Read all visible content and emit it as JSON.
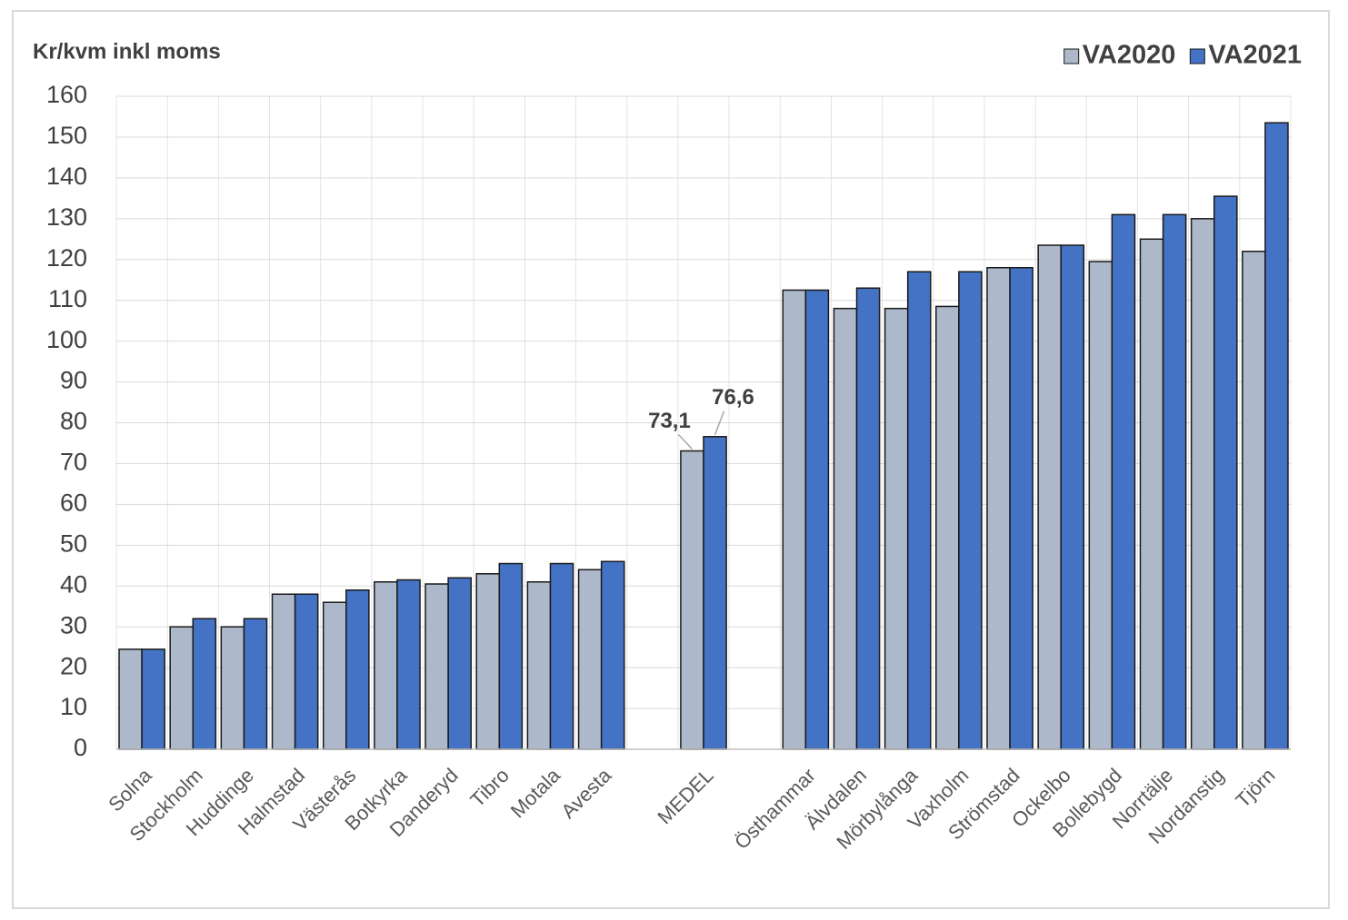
{
  "chart_data": {
    "type": "bar",
    "y_label": "Kr/kvm inkl moms",
    "categories": [
      "Solna",
      "Stockholm",
      "Huddinge",
      "Halmstad",
      "Västerås",
      "Botkyrka",
      "Danderyd",
      "Tibro",
      "Motala",
      "Avesta",
      null,
      "MEDEL",
      null,
      "Östhammar",
      "Älvdalen",
      "Mörbylånga",
      "Vaxholm",
      "Strömstad",
      "Ockelbo",
      "Bollebygd",
      "Norrtälje",
      "Nordanstig",
      "Tjörn"
    ],
    "series": [
      {
        "name": "VA2020",
        "color": "#adb9ca",
        "values": [
          24.5,
          30,
          30,
          38,
          36,
          41,
          40.5,
          43,
          41,
          44,
          null,
          73.1,
          null,
          112.5,
          108,
          108,
          108.5,
          118,
          123.5,
          119.5,
          125,
          130,
          122
        ],
        "value_labels": [
          null,
          null,
          null,
          null,
          null,
          null,
          null,
          null,
          null,
          null,
          null,
          "73,1",
          null,
          null,
          null,
          null,
          null,
          null,
          null,
          null,
          null,
          null,
          null
        ]
      },
      {
        "name": "VA2021",
        "color": "#4472c4",
        "values": [
          24.5,
          32,
          32,
          38,
          39,
          41.5,
          42,
          45.5,
          45.5,
          46,
          null,
          76.6,
          null,
          112.5,
          113,
          117,
          117,
          118,
          123.5,
          131,
          131,
          135.5,
          153.5
        ],
        "value_labels": [
          null,
          null,
          null,
          null,
          null,
          null,
          null,
          null,
          null,
          null,
          null,
          "76,6",
          null,
          null,
          null,
          null,
          null,
          null,
          null,
          null,
          null,
          null,
          null
        ]
      }
    ],
    "ylim": [
      0,
      160
    ],
    "yticks": [
      0,
      10,
      20,
      30,
      40,
      50,
      60,
      70,
      80,
      90,
      100,
      110,
      120,
      130,
      140,
      150,
      160
    ],
    "grid": true,
    "legend": "top-right"
  }
}
